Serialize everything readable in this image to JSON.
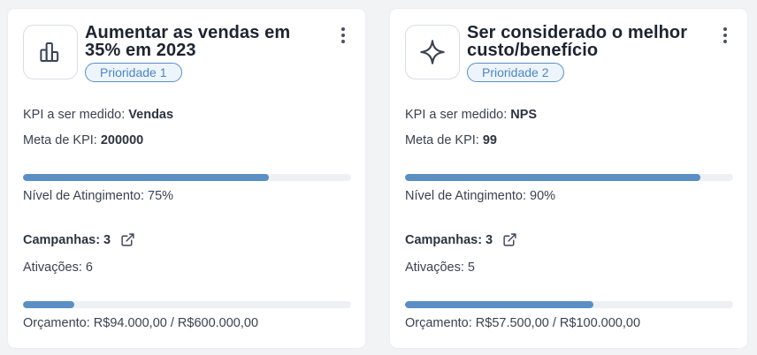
{
  "cards": [
    {
      "icon": "bar-chart-icon",
      "title": "Aumentar as vendas em 35% em 2023",
      "priority": "Prioridade 1",
      "kpi_label": "KPI a ser medido: ",
      "kpi_value": "Vendas",
      "meta_label": "Meta de KPI: ",
      "meta_value": "200000",
      "progress_fraction": 0.75,
      "level_text": "Nível de Atingimento: 75%",
      "campaigns_text": "Campanhas: 3",
      "activations_text": "Ativações: 6",
      "budget_fraction": 0.1567,
      "budget_text": "Orçamento: R$94.000,00 / R$600.000,00"
    },
    {
      "icon": "sparkle-icon",
      "title": "Ser considerado o melhor custo/benefício",
      "priority": "Prioridade 2",
      "kpi_label": "KPI a ser medido: ",
      "kpi_value": "NPS",
      "meta_label": "Meta de KPI: ",
      "meta_value": "99",
      "progress_fraction": 0.9,
      "level_text": "Nível de Atingimento: 90%",
      "campaigns_text": "Campanhas: 3",
      "activations_text": "Ativações: 5",
      "budget_fraction": 0.575,
      "budget_text": "Orçamento: R$57.500,00 / R$100.000,00"
    }
  ],
  "colors": {
    "accent": "#5b8fc4",
    "track": "#eef0f3",
    "badge_bg": "#edf4fb"
  }
}
